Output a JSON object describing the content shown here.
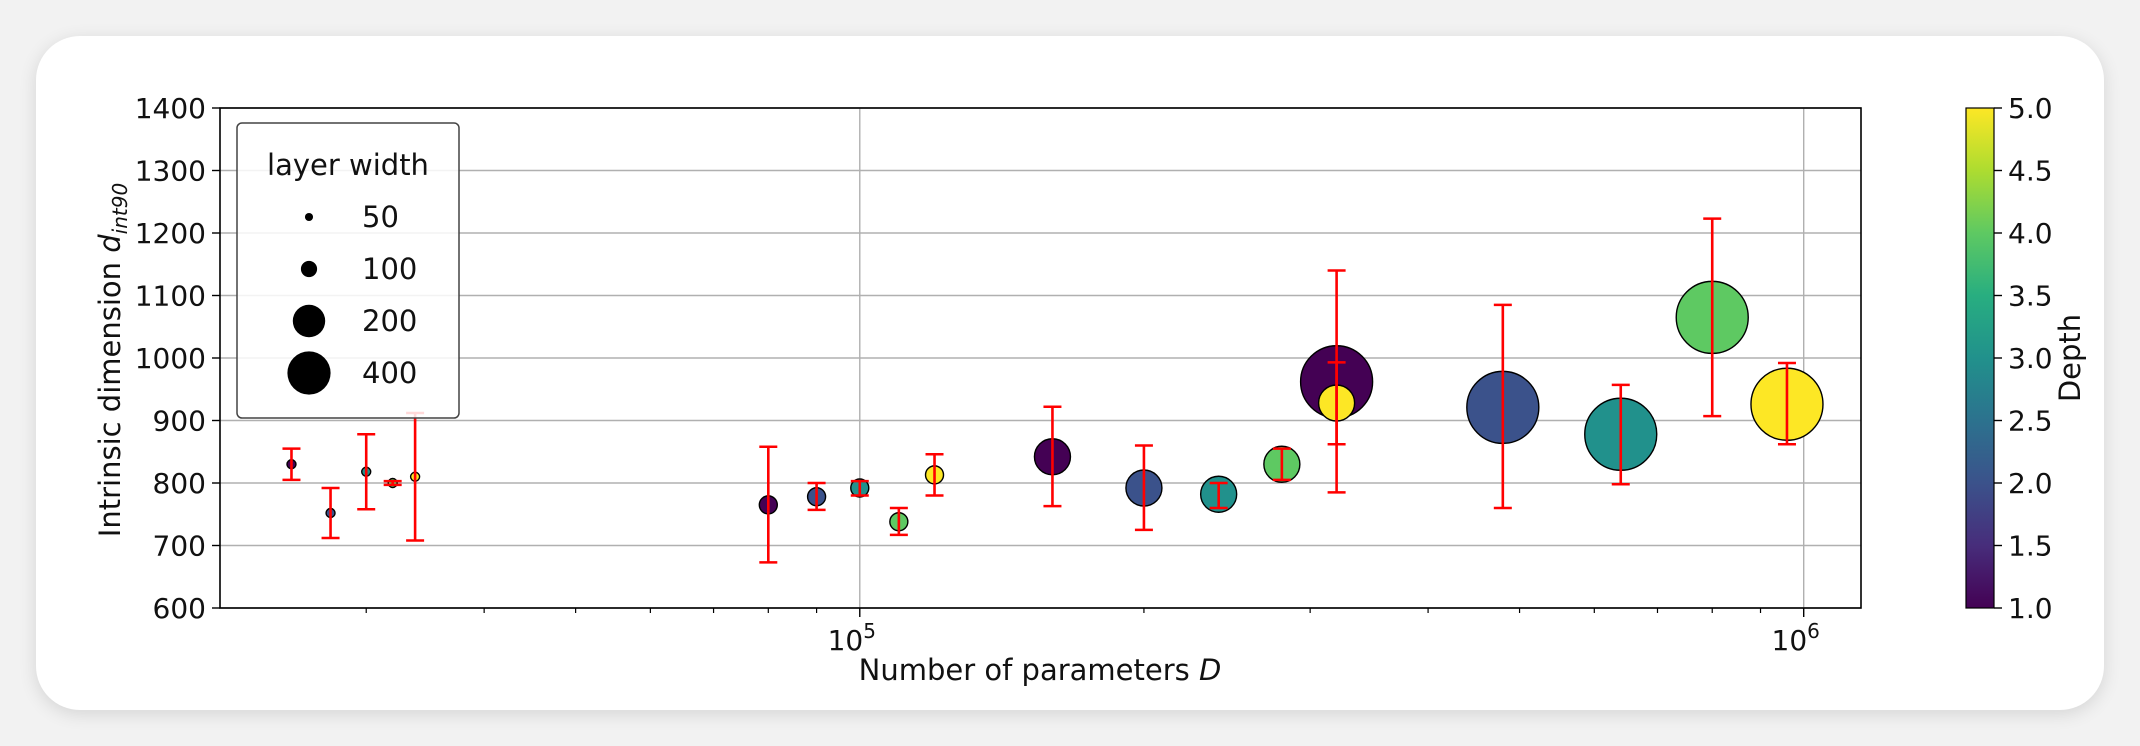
{
  "chart_data": {
    "type": "scatter",
    "xlabel": "Number of parameters D",
    "ylabel": "Intrinsic dimension d_int90",
    "xscale": "log",
    "xlim": [
      21000,
      1150000
    ],
    "ylim": [
      600,
      1400
    ],
    "yticks": [
      600,
      700,
      800,
      900,
      1000,
      1100,
      1200,
      1300,
      1400
    ],
    "xticks": [
      "10^5",
      "10^6"
    ],
    "grid": true,
    "legend": {
      "title": "layer width",
      "placement": "top-left",
      "entries": [
        {
          "label": "50",
          "width": 50
        },
        {
          "label": "100",
          "width": 100
        },
        {
          "label": "200",
          "width": 200
        },
        {
          "label": "400",
          "width": 400
        }
      ]
    },
    "colorbar": {
      "label": "Depth",
      "range": [
        1.0,
        5.0
      ],
      "ticks": [
        "1.0",
        "1.5",
        "2.0",
        "2.5",
        "3.0",
        "3.5",
        "4.0",
        "4.5",
        "5.0"
      ],
      "colormap": "viridis"
    },
    "points": [
      {
        "x": 25000,
        "y": 830,
        "err_lo": 805,
        "err_hi": 855,
        "width": 50,
        "depth": 1
      },
      {
        "x": 27500,
        "y": 752,
        "err_lo": 712,
        "err_hi": 792,
        "width": 50,
        "depth": 2
      },
      {
        "x": 30000,
        "y": 818,
        "err_lo": 758,
        "err_hi": 878,
        "width": 50,
        "depth": 3
      },
      {
        "x": 32000,
        "y": 800,
        "err_lo": 797,
        "err_hi": 803,
        "width": 50,
        "depth": 4
      },
      {
        "x": 33800,
        "y": 810,
        "err_lo": 708,
        "err_hi": 912,
        "width": 50,
        "depth": 5
      },
      {
        "x": 80000,
        "y": 765,
        "err_lo": 673,
        "err_hi": 858,
        "width": 100,
        "depth": 1
      },
      {
        "x": 90000,
        "y": 778,
        "err_lo": 757,
        "err_hi": 800,
        "width": 100,
        "depth": 2
      },
      {
        "x": 100000,
        "y": 792,
        "err_lo": 780,
        "err_hi": 803,
        "width": 100,
        "depth": 3
      },
      {
        "x": 110000,
        "y": 738,
        "err_lo": 717,
        "err_hi": 760,
        "width": 100,
        "depth": 4
      },
      {
        "x": 120000,
        "y": 813,
        "err_lo": 780,
        "err_hi": 846,
        "width": 100,
        "depth": 5
      },
      {
        "x": 160000,
        "y": 842,
        "err_lo": 763,
        "err_hi": 922,
        "width": 200,
        "depth": 1
      },
      {
        "x": 200000,
        "y": 792,
        "err_lo": 725,
        "err_hi": 860,
        "width": 200,
        "depth": 2
      },
      {
        "x": 240000,
        "y": 782,
        "err_lo": 760,
        "err_hi": 800,
        "width": 200,
        "depth": 3
      },
      {
        "x": 280000,
        "y": 830,
        "err_lo": 805,
        "err_hi": 855,
        "width": 200,
        "depth": 4
      },
      {
        "x": 320000,
        "y": 928,
        "err_lo": 862,
        "err_hi": 993,
        "width": 200,
        "depth": 5
      },
      {
        "x": 320000,
        "y": 962,
        "err_lo": 785,
        "err_hi": 1140,
        "width": 400,
        "depth": 1
      },
      {
        "x": 480000,
        "y": 921,
        "err_lo": 760,
        "err_hi": 1085,
        "width": 400,
        "depth": 2
      },
      {
        "x": 640000,
        "y": 878,
        "err_lo": 798,
        "err_hi": 957,
        "width": 400,
        "depth": 3
      },
      {
        "x": 800000,
        "y": 1065,
        "err_lo": 907,
        "err_hi": 1223,
        "width": 400,
        "depth": 4
      },
      {
        "x": 960000,
        "y": 926,
        "err_lo": 862,
        "err_hi": 992,
        "width": 400,
        "depth": 5
      }
    ]
  }
}
